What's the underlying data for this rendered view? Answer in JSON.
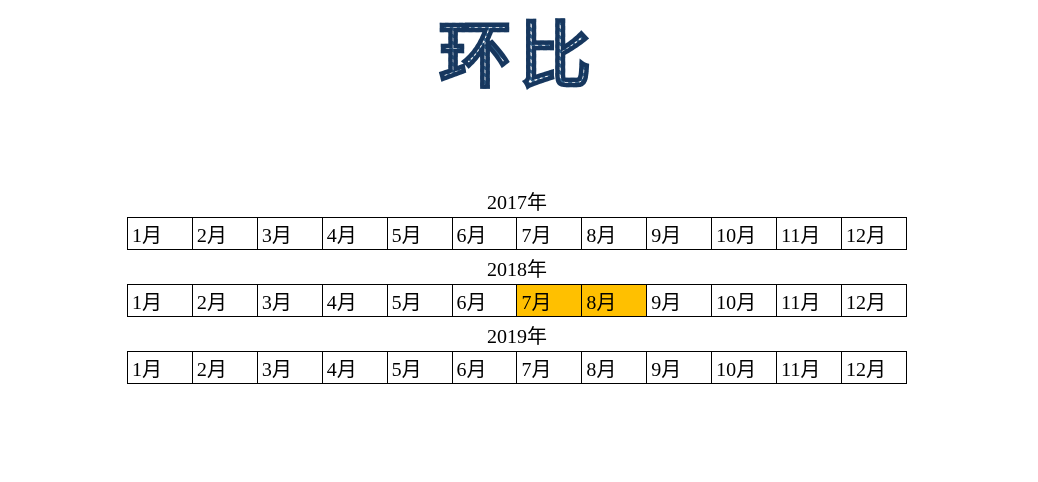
{
  "title": {
    "text": "环比"
  },
  "colors": {
    "background": "#ffffff",
    "title_stripe": "#38678f",
    "title_outline": "#17375e",
    "highlight": "#ffc000",
    "cell_border": "#000000",
    "cell_text": "#000000"
  },
  "tables": [
    {
      "year_label": "2017年",
      "cells": [
        "1月",
        "2月",
        "3月",
        "4月",
        "5月",
        "6月",
        "7月",
        "8月",
        "9月",
        "10月",
        "11月",
        "12月"
      ],
      "highlighted_indices": [],
      "highlighted_values": []
    },
    {
      "year_label": "2018年",
      "cells": [
        "1月",
        "2月",
        "3月",
        "4月",
        "5月",
        "6月",
        "7月",
        "8月",
        "9月",
        "10月",
        "11月",
        "12月"
      ],
      "highlighted_indices": [
        6,
        7
      ],
      "highlighted_values": [
        "7月",
        "8月"
      ]
    },
    {
      "year_label": "2019年",
      "cells": [
        "1月",
        "2月",
        "3月",
        "4月",
        "5月",
        "6月",
        "7月",
        "8月",
        "9月",
        "10月",
        "11月",
        "12月"
      ],
      "highlighted_indices": [],
      "highlighted_values": []
    }
  ]
}
